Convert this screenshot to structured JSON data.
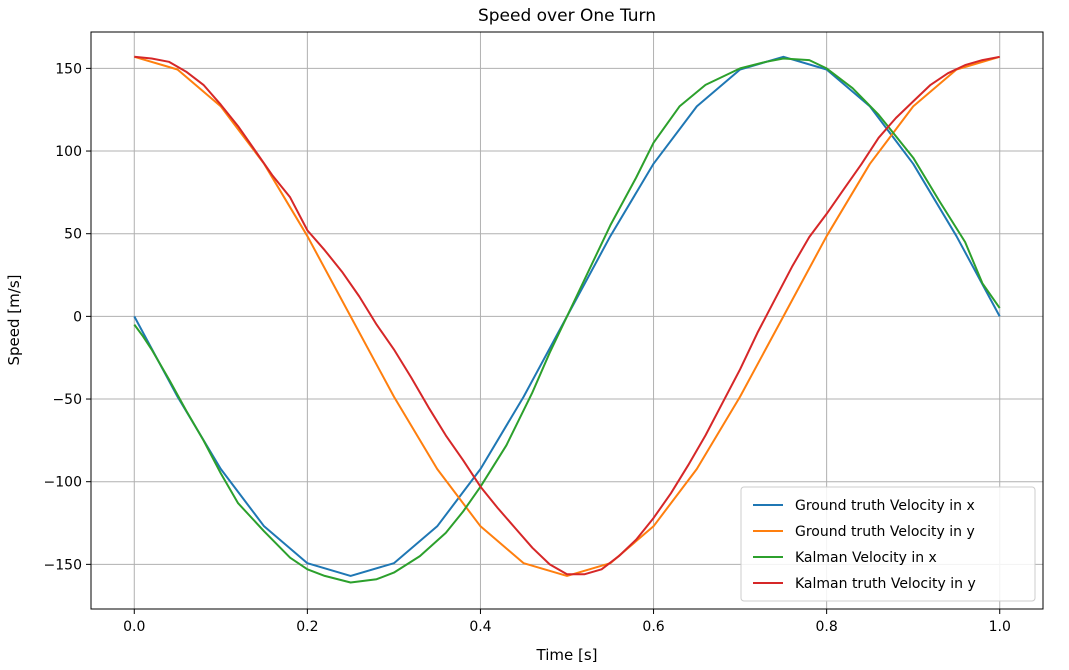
{
  "chart_data": {
    "type": "line",
    "title": "Speed over One Turn",
    "xlabel": "Time [s]",
    "ylabel": "Speed [m/s]",
    "xlim": [
      -0.05,
      1.05
    ],
    "ylim": [
      -177,
      172
    ],
    "xticks": [
      0.0,
      0.2,
      0.4,
      0.6,
      0.8,
      1.0
    ],
    "xtick_labels": [
      "0.0",
      "0.2",
      "0.4",
      "0.6",
      "0.8",
      "1.0"
    ],
    "yticks": [
      -150,
      -100,
      -50,
      0,
      50,
      100,
      150
    ],
    "ytick_labels": [
      "−150",
      "−100",
      "−50",
      "0",
      "50",
      "100",
      "150"
    ],
    "grid": true,
    "legend_position": "lower-right",
    "series": [
      {
        "name": "Ground truth Velocity in x",
        "color": "#1f77b4",
        "x": [
          0.0,
          0.05,
          0.1,
          0.15,
          0.2,
          0.25,
          0.3,
          0.35,
          0.4,
          0.45,
          0.5,
          0.55,
          0.6,
          0.65,
          0.7,
          0.75,
          0.8,
          0.85,
          0.9,
          0.95,
          1.0
        ],
        "y": [
          0,
          -48.5,
          -92.3,
          -127.0,
          -149.3,
          -157.0,
          -149.3,
          -127.0,
          -92.3,
          -48.5,
          0,
          48.5,
          92.3,
          127.0,
          149.3,
          157.0,
          149.3,
          127.0,
          92.3,
          48.5,
          0
        ]
      },
      {
        "name": "Ground truth Velocity in y",
        "color": "#ff7f0e",
        "x": [
          0.0,
          0.05,
          0.1,
          0.15,
          0.2,
          0.25,
          0.3,
          0.35,
          0.4,
          0.45,
          0.5,
          0.55,
          0.6,
          0.65,
          0.7,
          0.75,
          0.8,
          0.85,
          0.9,
          0.95,
          1.0
        ],
        "y": [
          157.0,
          149.3,
          127.0,
          92.3,
          48.5,
          0,
          -48.5,
          -92.3,
          -127.0,
          -149.3,
          -157.0,
          -149.3,
          -127.0,
          -92.3,
          -48.5,
          0,
          48.5,
          92.3,
          127.0,
          149.3,
          157.0
        ]
      },
      {
        "name": "Kalman Velocity in x",
        "color": "#2ca02c",
        "x": [
          0.0,
          0.01,
          0.02,
          0.04,
          0.06,
          0.08,
          0.1,
          0.12,
          0.15,
          0.18,
          0.2,
          0.22,
          0.25,
          0.28,
          0.3,
          0.33,
          0.36,
          0.38,
          0.4,
          0.43,
          0.46,
          0.48,
          0.5,
          0.52,
          0.55,
          0.58,
          0.6,
          0.63,
          0.66,
          0.7,
          0.73,
          0.75,
          0.78,
          0.8,
          0.83,
          0.86,
          0.9,
          0.93,
          0.96,
          0.98,
          1.0
        ],
        "y": [
          -5,
          -12,
          -20,
          -38,
          -57,
          -75,
          -95,
          -113,
          -130,
          -146,
          -153,
          -157,
          -161,
          -159,
          -155,
          -145,
          -131,
          -118,
          -103,
          -78,
          -46,
          -22,
          0,
          22,
          55,
          84,
          105,
          127,
          140,
          150,
          154,
          156,
          155,
          150,
          138,
          122,
          96,
          70,
          45,
          20,
          5
        ]
      },
      {
        "name": "Kalman truth Velocity in y",
        "color": "#d62728",
        "x": [
          0.0,
          0.02,
          0.04,
          0.06,
          0.08,
          0.1,
          0.12,
          0.14,
          0.16,
          0.18,
          0.2,
          0.22,
          0.24,
          0.26,
          0.28,
          0.3,
          0.32,
          0.34,
          0.36,
          0.38,
          0.4,
          0.42,
          0.44,
          0.46,
          0.48,
          0.5,
          0.52,
          0.54,
          0.56,
          0.58,
          0.6,
          0.62,
          0.64,
          0.66,
          0.68,
          0.7,
          0.72,
          0.74,
          0.76,
          0.78,
          0.8,
          0.82,
          0.84,
          0.86,
          0.88,
          0.9,
          0.92,
          0.94,
          0.96,
          0.98,
          1.0
        ],
        "y": [
          157,
          156,
          154,
          148,
          140,
          128,
          115,
          100,
          85,
          72,
          52,
          40,
          27,
          12,
          -5,
          -20,
          -37,
          -55,
          -72,
          -87,
          -103,
          -116,
          -128,
          -140,
          -150,
          -156,
          -156,
          -153,
          -145,
          -135,
          -122,
          -107,
          -90,
          -72,
          -52,
          -32,
          -10,
          10,
          30,
          48,
          62,
          77,
          92,
          108,
          120,
          130,
          140,
          147,
          152,
          155,
          157
        ]
      }
    ]
  }
}
